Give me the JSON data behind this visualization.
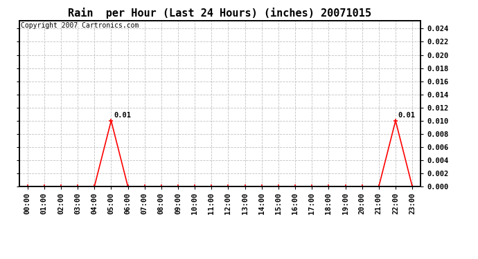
{
  "title": "Rain  per Hour (Last 24 Hours) (inches) 20071015",
  "copyright_text": "Copyright 2007 Cartronics.com",
  "hours": [
    "00:00",
    "01:00",
    "02:00",
    "03:00",
    "04:00",
    "05:00",
    "06:00",
    "07:00",
    "08:00",
    "09:00",
    "10:00",
    "11:00",
    "12:00",
    "13:00",
    "14:00",
    "15:00",
    "16:00",
    "17:00",
    "18:00",
    "19:00",
    "20:00",
    "21:00",
    "22:00",
    "23:00"
  ],
  "values": [
    0.0,
    0.0,
    0.0,
    0.0,
    0.0,
    0.01,
    0.0,
    0.0,
    0.0,
    0.0,
    0.0,
    0.0,
    0.0,
    0.0,
    0.0,
    0.0,
    0.0,
    0.0,
    0.0,
    0.0,
    0.0,
    0.0,
    0.01,
    0.0
  ],
  "line_color": "#ff0000",
  "marker_color": "#ff0000",
  "bg_color": "#ffffff",
  "grid_color": "#c0c0c0",
  "text_color": "#000000",
  "ylim": [
    0.0,
    0.0252
  ],
  "yticks": [
    0.0,
    0.002,
    0.004,
    0.006,
    0.008,
    0.01,
    0.012,
    0.014,
    0.016,
    0.018,
    0.02,
    0.022,
    0.024
  ],
  "title_fontsize": 11,
  "tick_fontsize": 7.5,
  "copyright_fontsize": 7,
  "annotation_fontsize": 7.5,
  "peak_indices": [
    5,
    22
  ],
  "peak_labels": [
    "0.01",
    "0.01"
  ]
}
